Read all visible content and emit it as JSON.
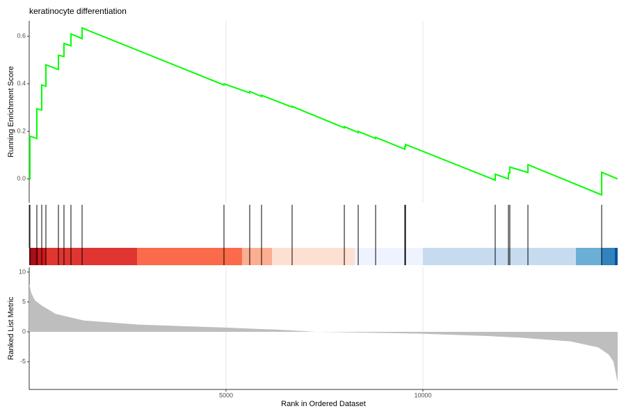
{
  "chart_data": [
    {
      "type": "line",
      "title": "keratinocyte differentiation",
      "ylabel": "Running Enrichment Score",
      "color": "#00ff00",
      "x": [
        0,
        18,
        18,
        194,
        194,
        318,
        318,
        424,
        424,
        742,
        742,
        883,
        883,
        1060,
        1060,
        1343,
        1343,
        4947,
        4947,
        5601,
        5601,
        5901,
        5901,
        6678,
        6678,
        8004,
        8004,
        8357,
        8357,
        8799,
        8799,
        9541,
        9541,
        9558,
        9558,
        11837,
        11837,
        12173,
        12173,
        12208,
        12208,
        12668,
        12668,
        14541,
        14541,
        14947
      ],
      "values": [
        0,
        0,
        0.18,
        0.17,
        0.295,
        0.29,
        0.395,
        0.39,
        0.48,
        0.46,
        0.52,
        0.515,
        0.57,
        0.56,
        0.61,
        0.59,
        0.635,
        0.395,
        0.4,
        0.362,
        0.368,
        0.347,
        0.352,
        0.302,
        0.305,
        0.215,
        0.22,
        0.195,
        0.2,
        0.17,
        0.175,
        0.125,
        0.135,
        0.135,
        0.145,
        -0.005,
        0.02,
        0,
        0.025,
        0.025,
        0.05,
        0.027,
        0.06,
        -0.067,
        0.028,
        0
      ],
      "xlim": [
        0,
        14947
      ],
      "ylim": [
        -0.1,
        0.665
      ],
      "yticks": [
        {
          "value": 0,
          "label": "0.0"
        },
        0.2,
        0.4,
        0.6
      ],
      "grid": true
    },
    {
      "type": "rug",
      "color": "#000000",
      "x": [
        18,
        194,
        318,
        424,
        742,
        883,
        1060,
        1343,
        4947,
        5601,
        5901,
        6678,
        8004,
        8357,
        8799,
        9541,
        9558,
        11837,
        12173,
        12208,
        12668,
        14541
      ],
      "xlim": [
        0,
        14947
      ],
      "band_edges": [
        0,
        230,
        424,
        2739,
        5406,
        6166,
        8269,
        10000,
        13887,
        14541,
        14876,
        14947
      ],
      "band_colors": [
        "#a50f15",
        "#cb181d",
        "#e03530",
        "#fb6a4a",
        "#fcae91",
        "#fee0d2",
        "#eff3ff",
        "#c6dbef",
        "#6baed6",
        "#3182bd",
        "#08519c"
      ]
    },
    {
      "type": "area",
      "ylabel": "Ranked List Metric",
      "xlabel": "Rank in Ordered Dataset",
      "color": "#bebebe",
      "x": [
        0,
        53,
        141,
        318,
        671,
        1378,
        2792,
        5000,
        6325,
        7297,
        9859,
        11625,
        12509,
        13746,
        14453,
        14718,
        14841,
        14947
      ],
      "values": [
        8.0,
        6.5,
        5.3,
        4.4,
        3.0,
        1.9,
        1.2,
        0.7,
        0.35,
        0.0,
        -0.3,
        -0.7,
        -1.0,
        -1.6,
        -2.6,
        -3.8,
        -5.0,
        -8.5
      ],
      "xlim": [
        0,
        14947
      ],
      "ylim": [
        -9.65,
        10.8
      ],
      "yticks": [
        -5,
        0,
        5,
        10
      ],
      "xticks": [
        5000,
        10000
      ],
      "grid": true
    }
  ]
}
